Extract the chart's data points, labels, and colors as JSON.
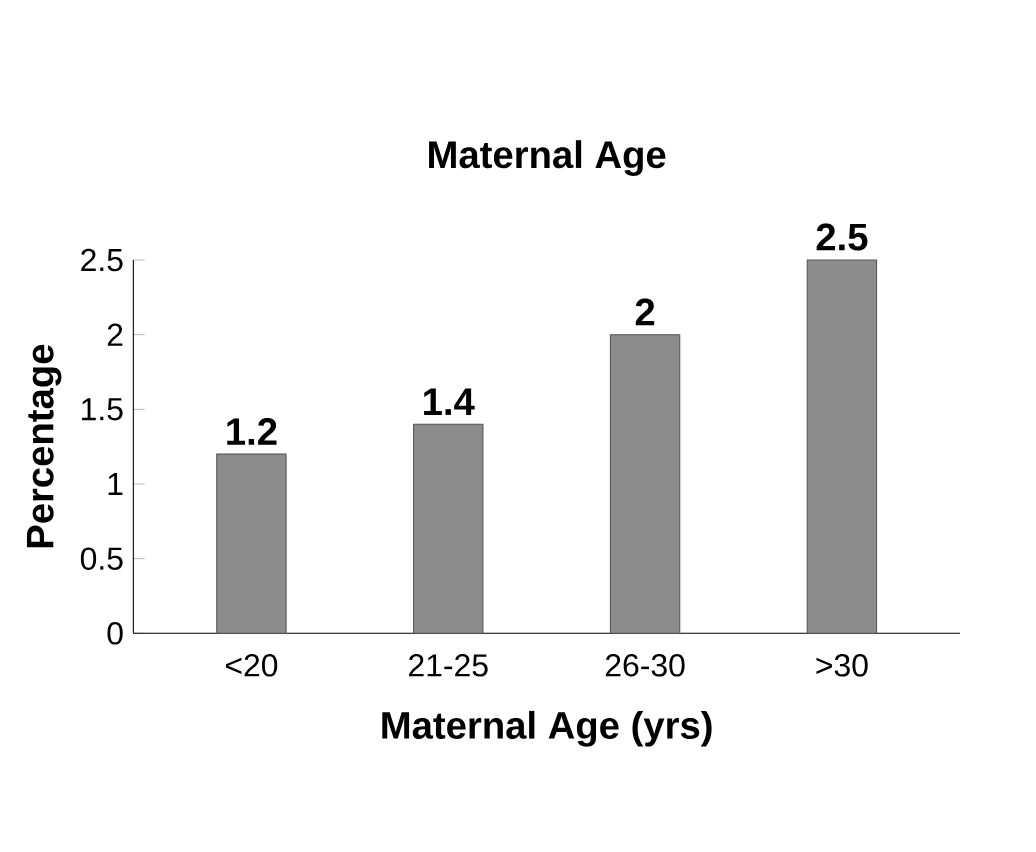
{
  "chart_data": {
    "type": "bar",
    "title": "Maternal Age",
    "xlabel": "Maternal Age (yrs)",
    "ylabel": "Percentage",
    "categories": [
      "<20",
      "21-25",
      "26-30",
      ">30"
    ],
    "values": [
      1.2,
      1.4,
      2,
      2.5
    ],
    "color": "#8c8c8c",
    "ylim": [
      0,
      2.5
    ],
    "yticks": [
      0,
      0.5,
      1,
      1.5,
      2,
      2.5
    ],
    "data_labels": true
  }
}
